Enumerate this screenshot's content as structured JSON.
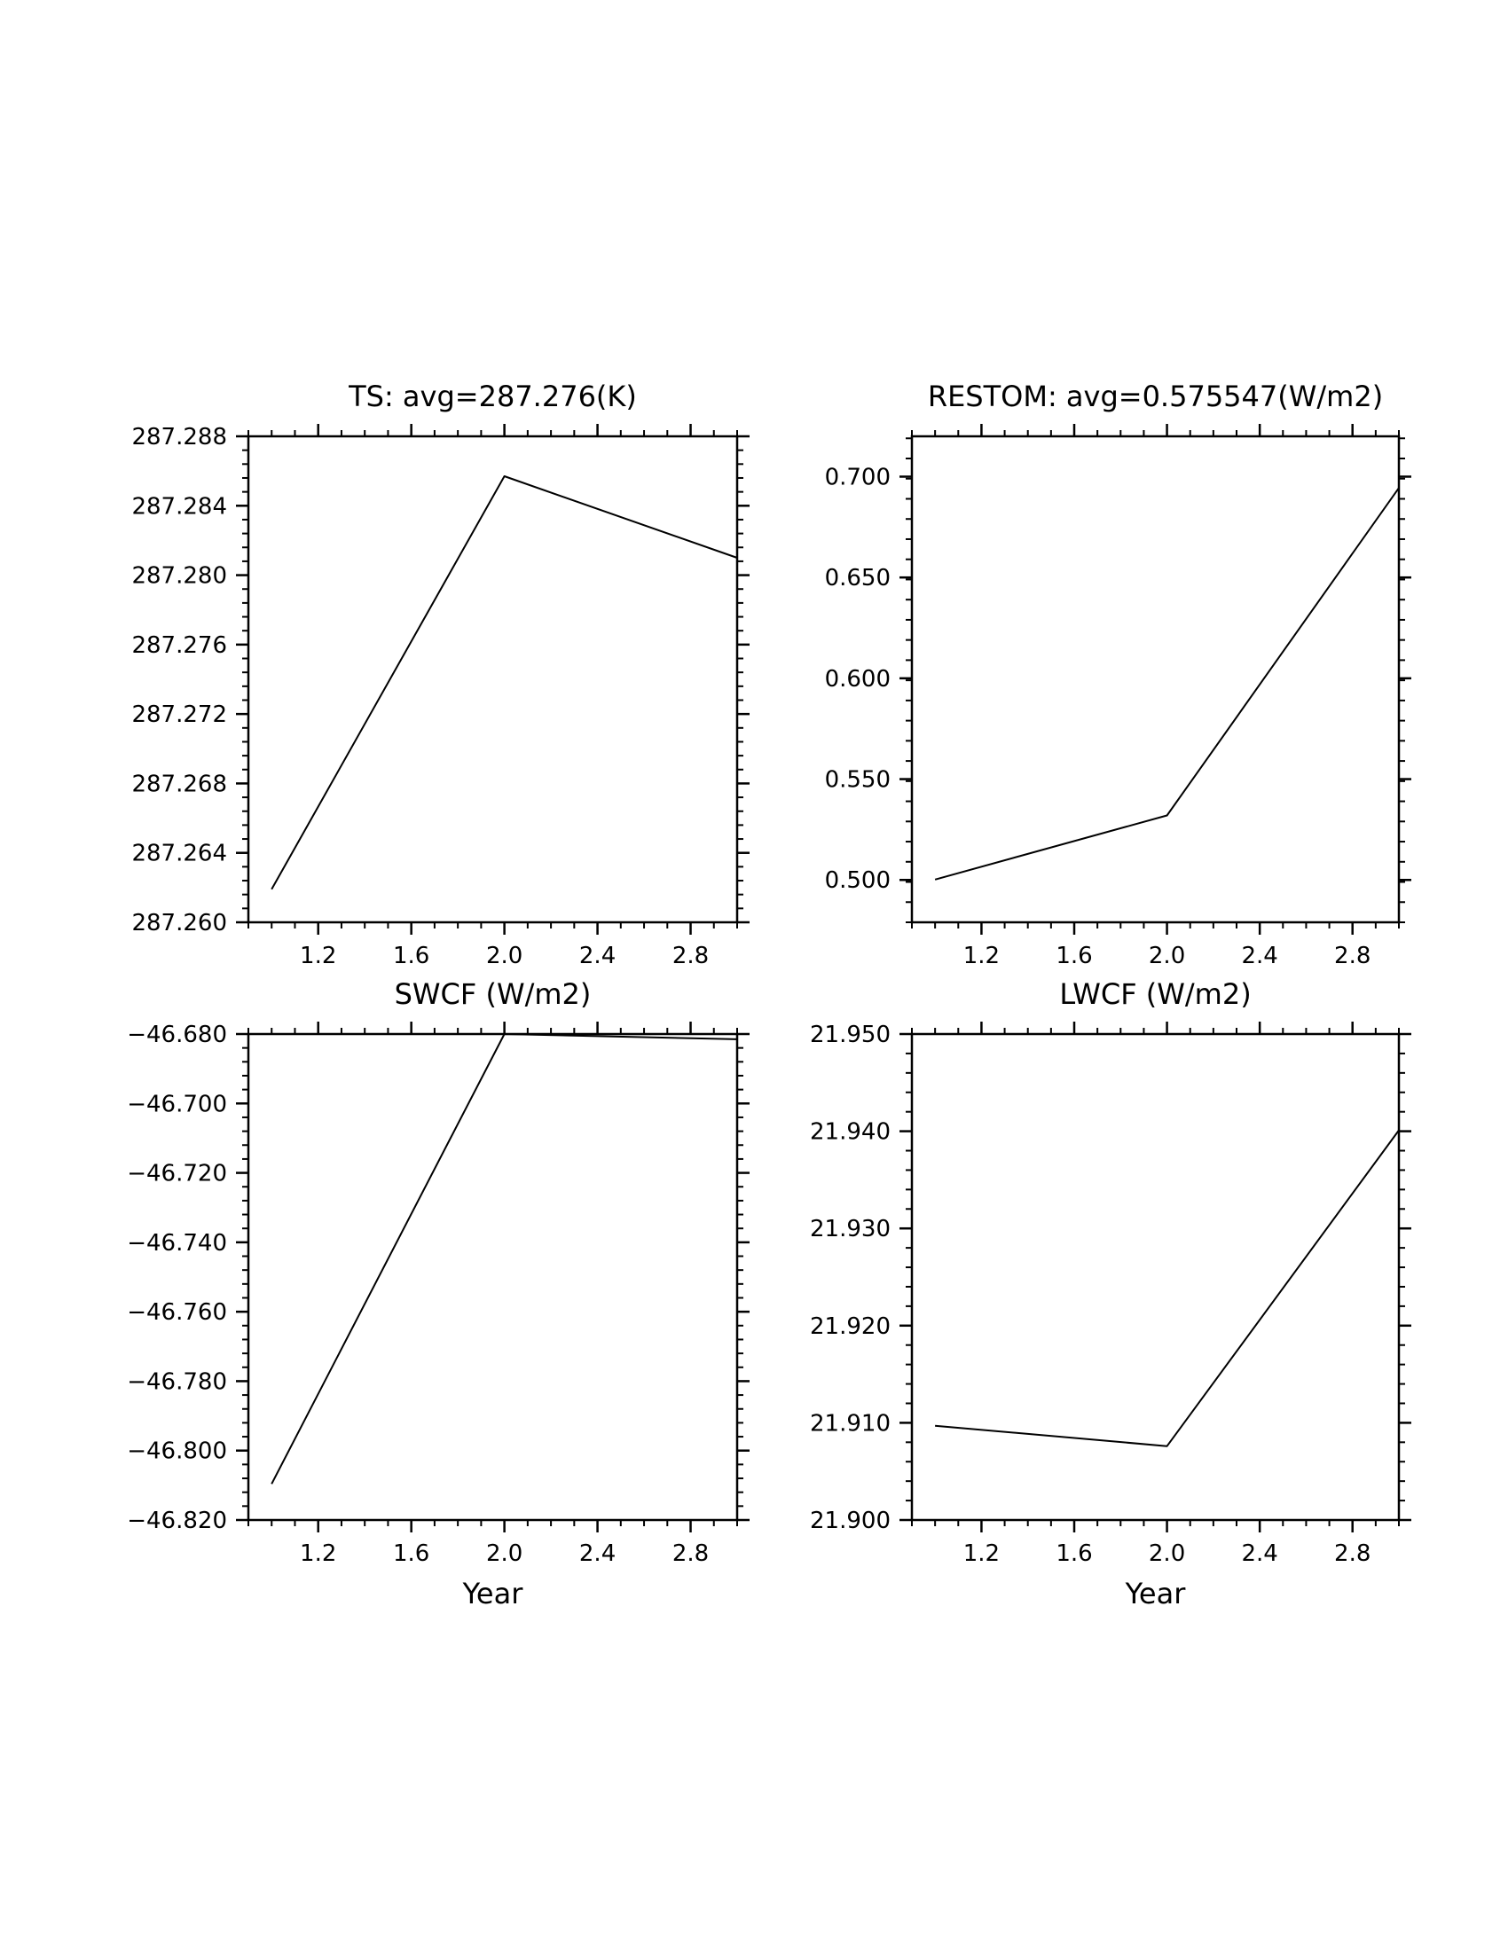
{
  "chart_data": [
    {
      "type": "line",
      "title": "TS: avg=287.276(K)",
      "xlabel": "",
      "ylabel": "",
      "xlim": [
        0.9,
        3.0
      ],
      "ylim": [
        287.26,
        287.288
      ],
      "x_ticks": [
        1.2,
        1.6,
        2.0,
        2.4,
        2.8
      ],
      "x_tick_labels": [
        "1.2",
        "1.6",
        "2.0",
        "2.4",
        "2.8"
      ],
      "y_ticks": [
        287.26,
        287.264,
        287.268,
        287.272,
        287.276,
        287.28,
        287.284,
        287.288
      ],
      "y_tick_labels": [
        "287.260",
        "287.264",
        "287.268",
        "287.272",
        "287.276",
        "287.280",
        "287.284",
        "287.288"
      ],
      "x": [
        1.0,
        2.0,
        3.0
      ],
      "series": [
        {
          "values": [
            287.2619,
            287.2857,
            287.281
          ]
        }
      ],
      "grid": false
    },
    {
      "type": "line",
      "title": "RESTOM: avg=0.575547(W/m2)",
      "xlabel": "",
      "ylabel": "",
      "xlim": [
        0.9,
        3.0
      ],
      "ylim": [
        0.479,
        0.72
      ],
      "x_ticks": [
        1.2,
        1.6,
        2.0,
        2.4,
        2.8
      ],
      "x_tick_labels": [
        "1.2",
        "1.6",
        "2.0",
        "2.4",
        "2.8"
      ],
      "y_ticks": [
        0.5,
        0.55,
        0.6,
        0.65,
        0.7
      ],
      "y_tick_labels": [
        "0.500",
        "0.550",
        "0.600",
        "0.650",
        "0.700"
      ],
      "x": [
        1.0,
        2.0,
        3.0
      ],
      "series": [
        {
          "values": [
            0.5002,
            0.532,
            0.6944
          ]
        }
      ],
      "grid": false
    },
    {
      "type": "line",
      "title": "SWCF (W/m2)",
      "xlabel": "Year",
      "ylabel": "",
      "xlim": [
        0.9,
        3.0
      ],
      "ylim": [
        -46.82,
        -46.68
      ],
      "x_ticks": [
        1.2,
        1.6,
        2.0,
        2.4,
        2.8
      ],
      "x_tick_labels": [
        "1.2",
        "1.6",
        "2.0",
        "2.4",
        "2.8"
      ],
      "y_ticks": [
        -46.82,
        -46.8,
        -46.78,
        -46.76,
        -46.74,
        -46.72,
        -46.7,
        -46.68
      ],
      "y_tick_labels": [
        "−46.820",
        "−46.800",
        "−46.780",
        "−46.760",
        "−46.740",
        "−46.720",
        "−46.700",
        "−46.680"
      ],
      "x": [
        1.0,
        2.0,
        3.0
      ],
      "series": [
        {
          "values": [
            -46.8096,
            -46.68,
            -46.6815
          ]
        }
      ],
      "grid": false
    },
    {
      "type": "line",
      "title": "LWCF (W/m2)",
      "xlabel": "Year",
      "ylabel": "",
      "xlim": [
        0.9,
        3.0
      ],
      "ylim": [
        21.9,
        21.95
      ],
      "x_ticks": [
        1.2,
        1.6,
        2.0,
        2.4,
        2.8
      ],
      "x_tick_labels": [
        "1.2",
        "1.6",
        "2.0",
        "2.4",
        "2.8"
      ],
      "y_ticks": [
        21.9,
        21.91,
        21.92,
        21.93,
        21.94,
        21.95
      ],
      "y_tick_labels": [
        "21.900",
        "21.910",
        "21.920",
        "21.930",
        "21.940",
        "21.950"
      ],
      "x": [
        1.0,
        2.0,
        3.0
      ],
      "series": [
        {
          "values": [
            21.9097,
            21.9076,
            21.9401
          ]
        }
      ],
      "grid": false
    }
  ]
}
